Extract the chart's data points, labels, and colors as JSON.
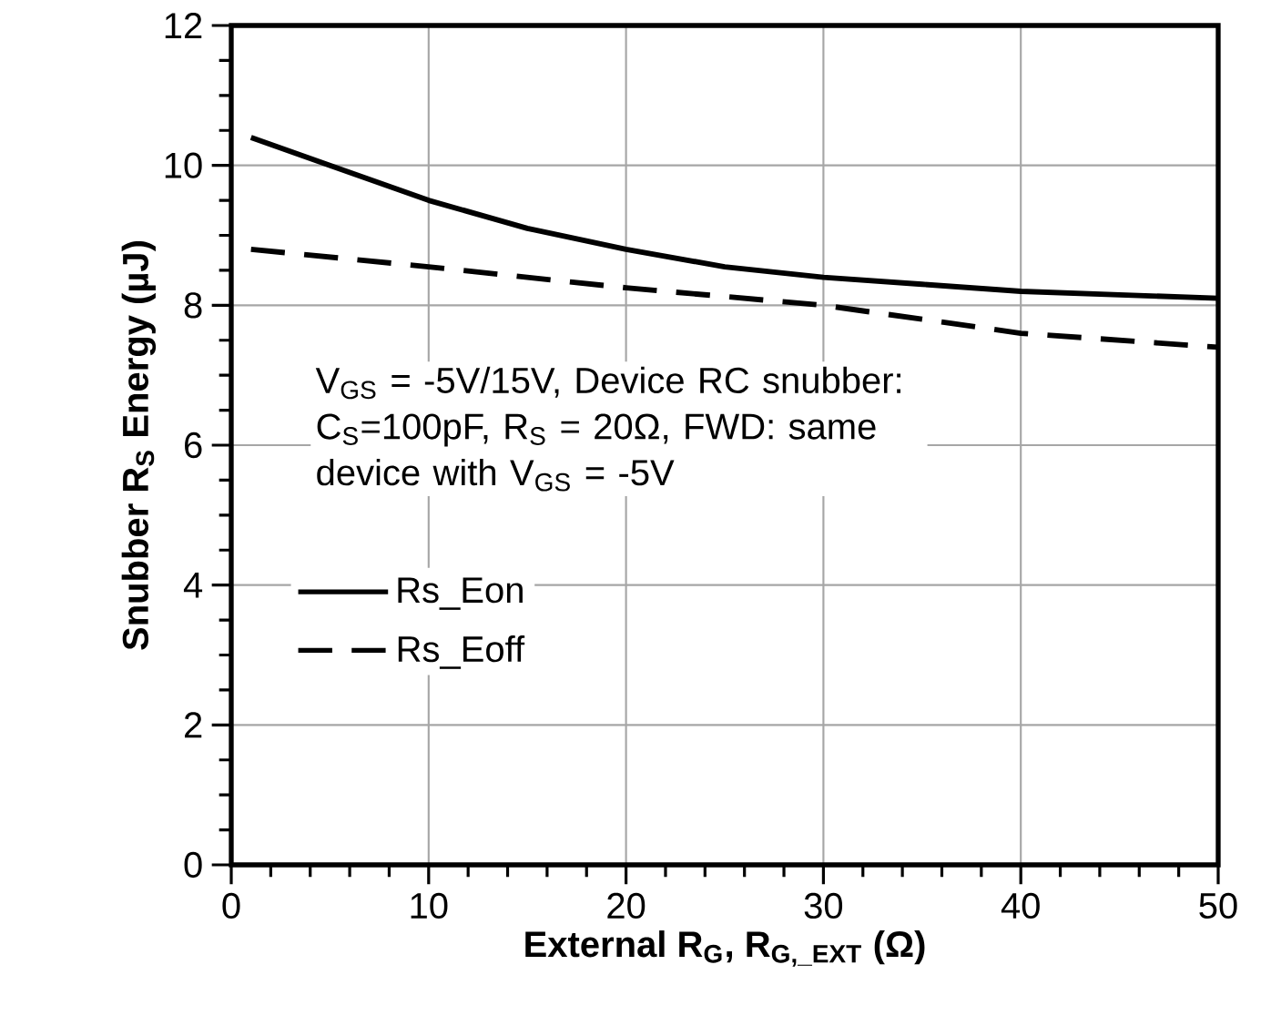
{
  "chart_data": {
    "type": "line",
    "xlabel": "External R$_{G}$, R$_{G,_EXT}$ (Ω)",
    "ylabel": "Snubber R$_{S}$ Energy (µJ)",
    "annotations": [
      "V$_{GS}$ = -5V/15V, Device RC snubber: C$_{S}$=100pF,  R$_{S}$ = 20Ω, FWD: same device with V$_{GS}$ = -5V"
    ],
    "series": [
      {
        "name": "Rs_Eon",
        "color": "#000000",
        "line_style": "solid",
        "x": [
          1,
          5,
          10,
          15,
          20,
          25,
          30,
          35,
          40,
          45,
          50
        ],
        "values": [
          10.4,
          10.0,
          9.5,
          9.1,
          8.8,
          8.55,
          8.4,
          8.3,
          8.2,
          8.15,
          8.1
        ]
      },
      {
        "name": "Rs_Eoff",
        "color": "#000000",
        "line_style": "dashed",
        "x": [
          1,
          10,
          20,
          30,
          40,
          50
        ],
        "values": [
          8.8,
          8.55,
          8.25,
          8.0,
          7.6,
          7.4
        ]
      }
    ],
    "xlim": [
      0,
      50
    ],
    "xticks": [
      0,
      10,
      20,
      30,
      40,
      50
    ],
    "ylim": [
      0,
      12
    ],
    "yticks": [
      0,
      2,
      4,
      6,
      8,
      10,
      12
    ],
    "grid": true,
    "legend": "left",
    "marker": "none"
  }
}
